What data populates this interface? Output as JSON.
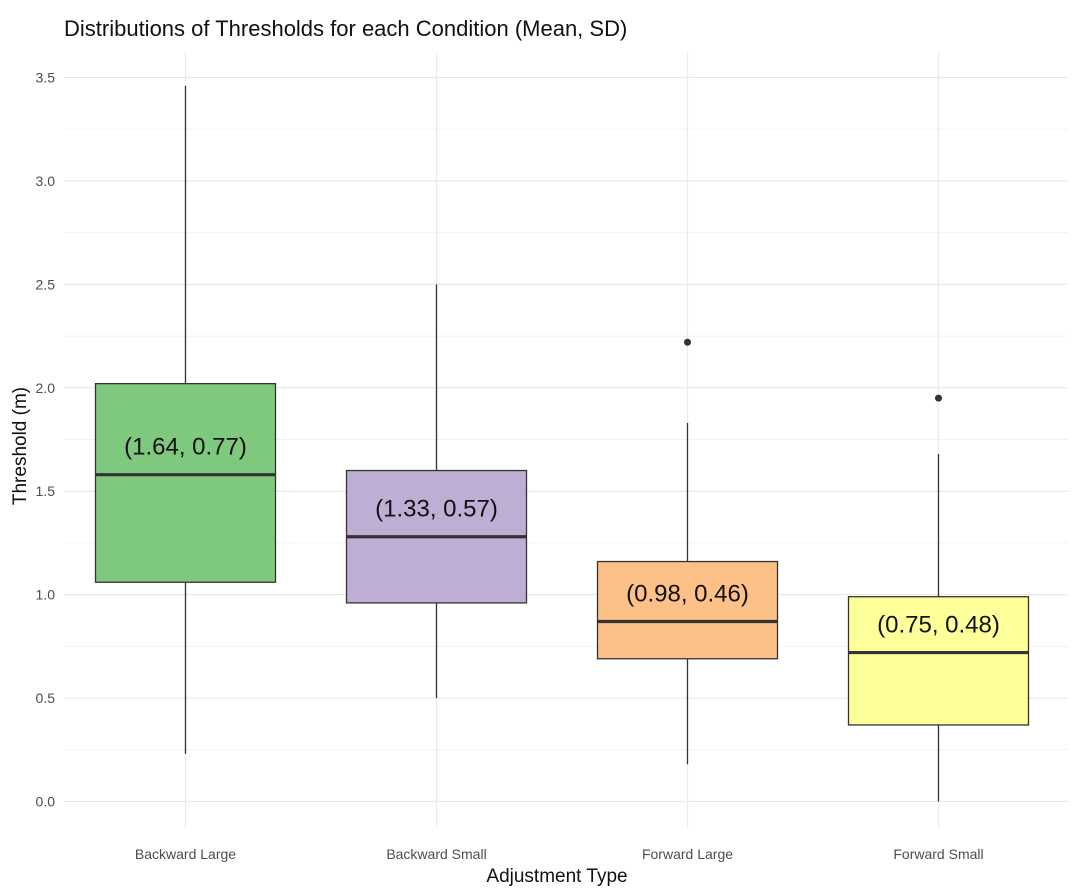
{
  "chart_data": {
    "type": "box",
    "title": "Distributions of Thresholds for each Condition  (Mean, SD)",
    "xlabel": "Adjustment Type",
    "ylabel": "Threshold (m)",
    "ylim": [
      -0.1,
      3.55
    ],
    "yticks": [
      0.0,
      0.5,
      1.0,
      1.5,
      2.0,
      2.5,
      3.0,
      3.5
    ],
    "ytick_labels": [
      "0.0",
      "0.5",
      "1.0",
      "1.5",
      "2.0",
      "2.5",
      "3.0",
      "3.5"
    ],
    "grid": true,
    "legend": "none",
    "categories": [
      "Backward Large",
      "Backward Small",
      "Forward Large",
      "Forward Small"
    ],
    "boxes": [
      {
        "category": "Backward Large",
        "whisker_low": 0.23,
        "q1": 1.06,
        "median": 1.58,
        "q3": 2.02,
        "whisker_high": 3.46,
        "outliers": [],
        "color": "#7fc97f",
        "annotation": "(1.64, 0.77)"
      },
      {
        "category": "Backward Small",
        "whisker_low": 0.5,
        "q1": 0.96,
        "median": 1.28,
        "q3": 1.6,
        "whisker_high": 2.5,
        "outliers": [],
        "color": "#beaed4",
        "annotation": "(1.33, 0.57)"
      },
      {
        "category": "Forward Large",
        "whisker_low": 0.18,
        "q1": 0.69,
        "median": 0.87,
        "q3": 1.16,
        "whisker_high": 1.83,
        "outliers": [
          2.22
        ],
        "color": "#fdc086",
        "annotation": "(0.98, 0.46)"
      },
      {
        "category": "Forward Small",
        "whisker_low": 0.0,
        "q1": 0.37,
        "median": 0.72,
        "q3": 0.99,
        "whisker_high": 1.68,
        "outliers": [
          1.95
        ],
        "color": "#ffff99",
        "annotation": "(0.75, 0.48)"
      }
    ]
  }
}
